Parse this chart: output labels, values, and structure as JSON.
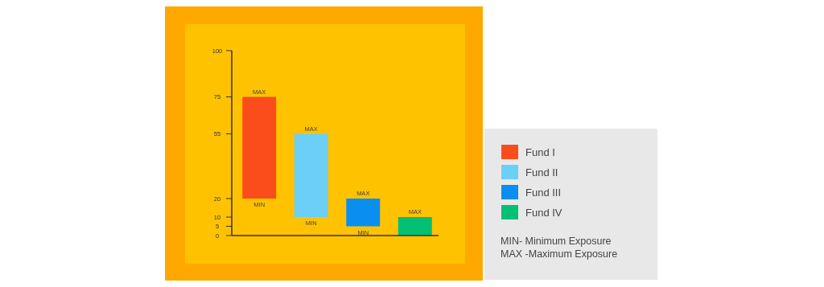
{
  "chart_data": {
    "type": "bar",
    "categories": [
      null,
      null,
      null,
      null
    ],
    "grid": false,
    "series": [
      {
        "name": "Fund I",
        "color": "#fb4c1b",
        "values": [
          55,
          null,
          null,
          null
        ],
        "base": [
          20,
          null,
          null,
          null
        ]
      },
      {
        "name": "Fund II",
        "color": "#6ccff7",
        "values": [
          null,
          45,
          null,
          null
        ],
        "base": [
          null,
          10,
          null,
          null
        ]
      },
      {
        "name": "Fund III",
        "color": "#0a8ff0",
        "values": [
          null,
          null,
          15,
          null
        ],
        "base": [
          null,
          null,
          5,
          null
        ]
      },
      {
        "name": "Fund IV",
        "color": "#04c074",
        "values": [
          null,
          null,
          null,
          10
        ],
        "base": [
          null,
          null,
          null,
          0
        ]
      }
    ],
    "ylim": [
      0,
      100
    ],
    "yticks": [
      0,
      5,
      10,
      20,
      55,
      75,
      100
    ],
    "tick_labels": "y",
    "legend": "right",
    "annotations": [
      {
        "text": "MAX",
        "y": 75
      },
      {
        "text": "MIN",
        "y": 20
      },
      {
        "text": "MAX",
        "y": 55
      },
      {
        "text": "MIN",
        "y": 10
      },
      {
        "text": "MAX",
        "y": 20
      },
      {
        "text": "MIN",
        "y": 5
      },
      {
        "text": "MAX",
        "y": 10
      },
      "MIN- Minimum Exposure",
      "MAX -Maximum Exposure"
    ]
  }
}
